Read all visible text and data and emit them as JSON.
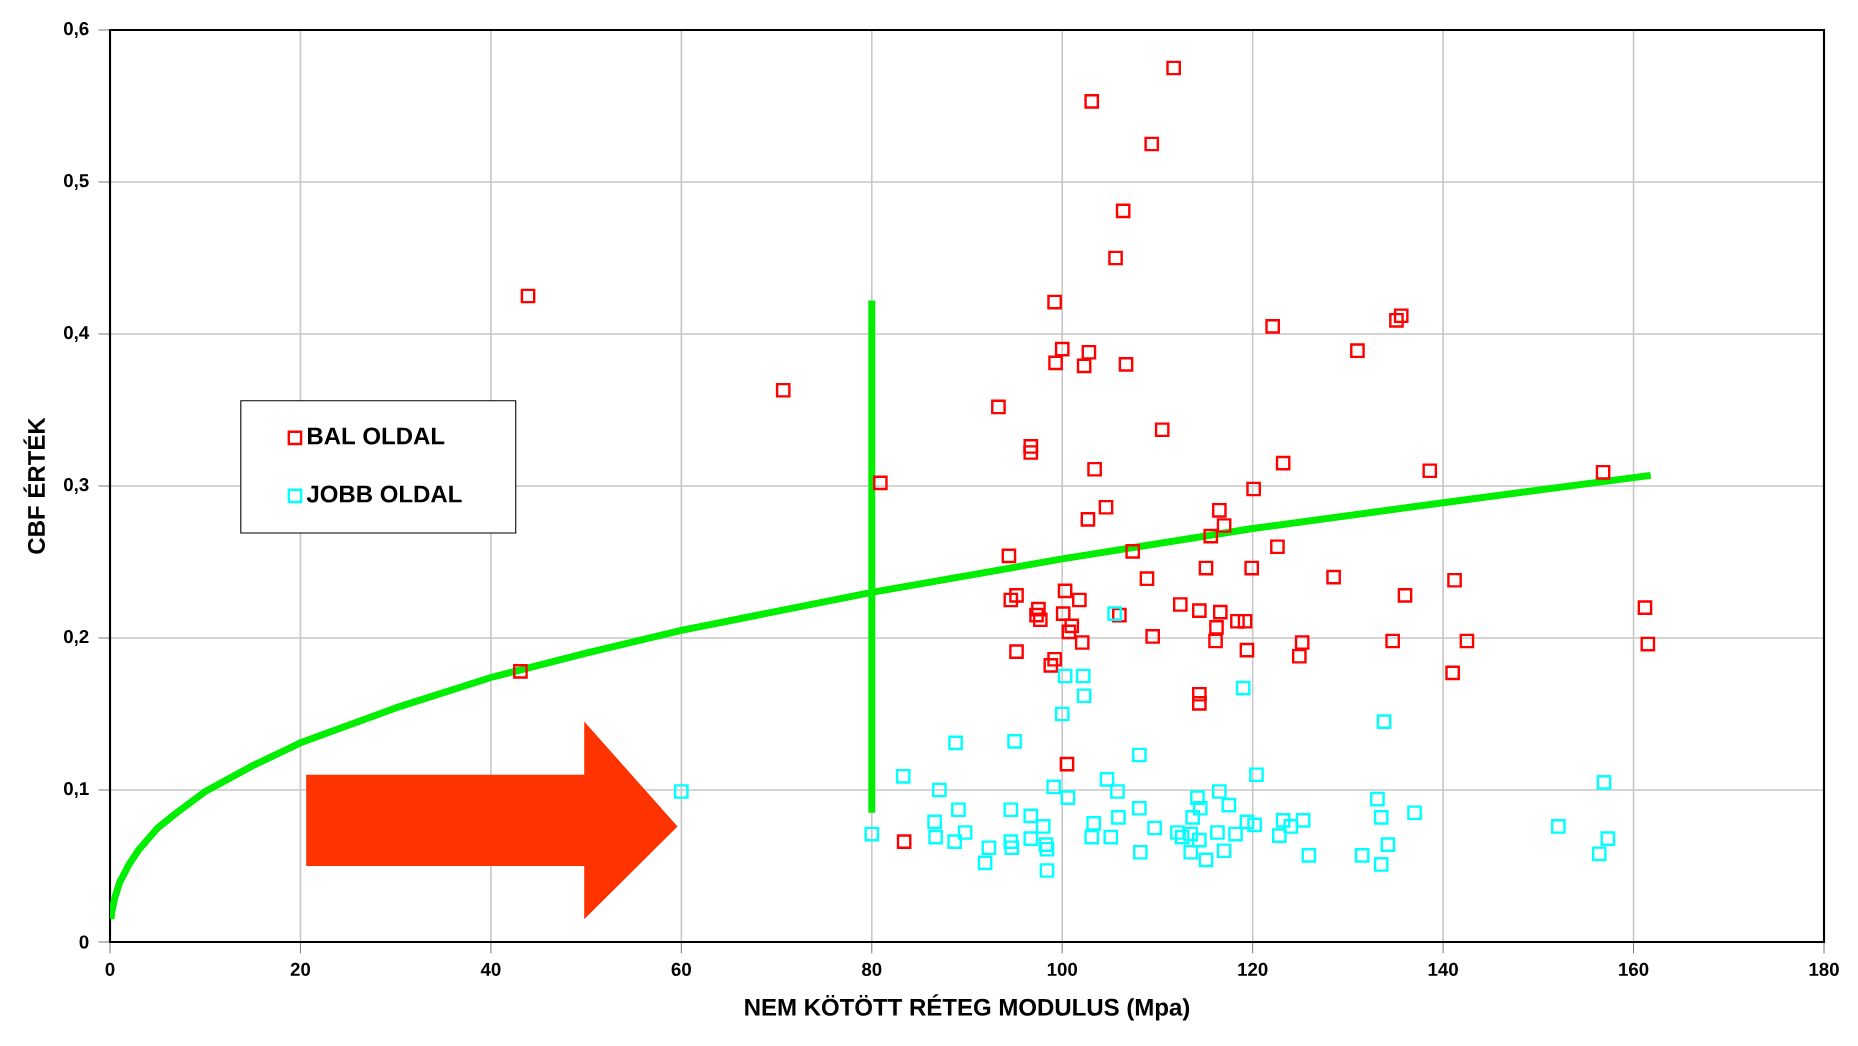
{
  "chart_data": {
    "type": "scatter",
    "xlabel": "NEM KÖTÖTT RÉTEG MODULUS (Mpa)",
    "ylabel": "CBF ÉRTÉK",
    "xlim": [
      0,
      180
    ],
    "ylim": [
      0,
      0.6
    ],
    "xticks": [
      0,
      20,
      40,
      60,
      80,
      100,
      120,
      140,
      160,
      180
    ],
    "yticks": [
      0,
      {
        "value": 0.1,
        "label": "0,1"
      },
      {
        "value": 0.2,
        "label": "0,2"
      },
      {
        "value": 0.3,
        "label": "0,3"
      },
      {
        "value": 0.4,
        "label": "0,4"
      },
      {
        "value": 0.5,
        "label": "0,5"
      },
      {
        "value": 0.6,
        "label": "0,6"
      }
    ],
    "grid": true,
    "legend": "left",
    "series": [
      {
        "name": "BAL OLDAL",
        "color": "#ff0000",
        "marker": "square",
        "x": [
          111.7,
          103.1,
          109.4,
          106.4,
          105.6,
          99.2,
          122.1,
          131.0,
          100.0,
          102.8,
          99.3,
          102.3,
          106.7,
          93.3,
          110.5,
          96.7,
          96.7,
          103.4,
          123.2,
          80.9,
          120.1,
          104.6,
          116.5,
          102.7,
          117.0,
          115.6,
          122.6,
          107.4,
          94.4,
          115.1,
          119.9,
          128.5,
          108.9,
          95.2,
          94.6,
          100.3,
          101.8,
          112.4,
          97.5,
          97.3,
          97.7,
          100.1,
          101.0,
          100.7,
          106.0,
          114.4,
          116.6,
          116.2,
          118.4,
          119.2,
          102.1,
          109.5,
          116.1,
          125.2,
          124.9,
          119.4,
          95.2,
          99.2,
          98.8,
          114.4,
          114.4,
          100.5,
          83.4,
          135.6,
          135.1,
          138.6,
          156.8,
          141.2,
          136.0,
          161.2,
          134.7,
          142.5,
          161.5,
          141.0,
          43.9,
          70.7,
          43.1
        ],
        "values": [
          0.575,
          0.553,
          0.525,
          0.481,
          0.45,
          0.421,
          0.405,
          0.389,
          0.39,
          0.388,
          0.381,
          0.379,
          0.38,
          0.352,
          0.337,
          0.326,
          0.322,
          0.311,
          0.315,
          0.302,
          0.298,
          0.286,
          0.284,
          0.278,
          0.274,
          0.267,
          0.26,
          0.257,
          0.254,
          0.246,
          0.246,
          0.24,
          0.239,
          0.228,
          0.225,
          0.231,
          0.225,
          0.222,
          0.219,
          0.215,
          0.212,
          0.216,
          0.208,
          0.204,
          0.215,
          0.218,
          0.217,
          0.207,
          0.211,
          0.211,
          0.197,
          0.201,
          0.198,
          0.197,
          0.188,
          0.192,
          0.191,
          0.186,
          0.182,
          0.163,
          0.157,
          0.117,
          0.066,
          0.412,
          0.409,
          0.31,
          0.309,
          0.238,
          0.228,
          0.22,
          0.198,
          0.198,
          0.196,
          0.177,
          0.425,
          0.363,
          0.178
        ]
      },
      {
        "name": "JOBB OLDAL",
        "color": "#00ffff",
        "marker": "square",
        "x": [
          105.5,
          100.3,
          102.2,
          102.3,
          100.0,
          119.0,
          133.8,
          156.9,
          133.1,
          137.0,
          133.5,
          152.1,
          157.3,
          134.2,
          156.4,
          131.5,
          133.5,
          125.3,
          123.2,
          124.0,
          122.8,
          125.9,
          88.8,
          95.0,
          108.1,
          83.3,
          120.4,
          87.1,
          99.1,
          100.6,
          104.7,
          105.8,
          116.5,
          114.2,
          114.5,
          117.5,
          89.1,
          94.6,
          108.1,
          86.6,
          86.7,
          89.8,
          96.7,
          98.0,
          88.7,
          92.3,
          91.9,
          94.6,
          94.7,
          96.7,
          98.3,
          98.4,
          98.4,
          103.3,
          103.1,
          105.1,
          105.9,
          109.7,
          108.2,
          112.1,
          112.6,
          113.7,
          113.5,
          114.4,
          113.5,
          115.1,
          116.3,
          117.0,
          118.2,
          119.4,
          120.2,
          60.0,
          80.0
        ],
        "values": [
          0.216,
          0.175,
          0.175,
          0.162,
          0.15,
          0.167,
          0.145,
          0.105,
          0.094,
          0.085,
          0.082,
          0.076,
          0.068,
          0.064,
          0.058,
          0.057,
          0.051,
          0.08,
          0.08,
          0.076,
          0.07,
          0.057,
          0.131,
          0.132,
          0.123,
          0.109,
          0.11,
          0.1,
          0.102,
          0.095,
          0.107,
          0.099,
          0.099,
          0.095,
          0.088,
          0.09,
          0.087,
          0.087,
          0.088,
          0.079,
          0.069,
          0.072,
          0.083,
          0.076,
          0.066,
          0.062,
          0.052,
          0.066,
          0.062,
          0.068,
          0.064,
          0.061,
          0.047,
          0.078,
          0.069,
          0.069,
          0.082,
          0.075,
          0.059,
          0.072,
          0.069,
          0.082,
          0.071,
          0.067,
          0.059,
          0.054,
          0.072,
          0.06,
          0.071,
          0.079,
          0.077,
          0.099,
          0.071
        ]
      },
      {
        "type": "line",
        "marker": "none",
        "color": "#00ee00",
        "x": [
          0.1,
          0.2,
          0.5,
          1,
          2,
          3,
          5,
          7,
          10,
          15,
          20,
          30,
          40,
          50,
          60,
          80,
          100,
          120,
          140,
          161.8
        ],
        "values": [
          0.015,
          0.02,
          0.029,
          0.039,
          0.051,
          0.0605,
          0.075,
          0.085,
          0.099,
          0.116,
          0.131,
          0.154,
          0.174,
          0.19,
          0.205,
          0.23,
          0.252,
          0.272,
          0.289,
          0.307
        ]
      },
      {
        "type": "line",
        "marker": "none",
        "color": "#00ee00",
        "x": [
          80,
          80
        ],
        "values": [
          0.085,
          0.422
        ]
      }
    ]
  }
}
